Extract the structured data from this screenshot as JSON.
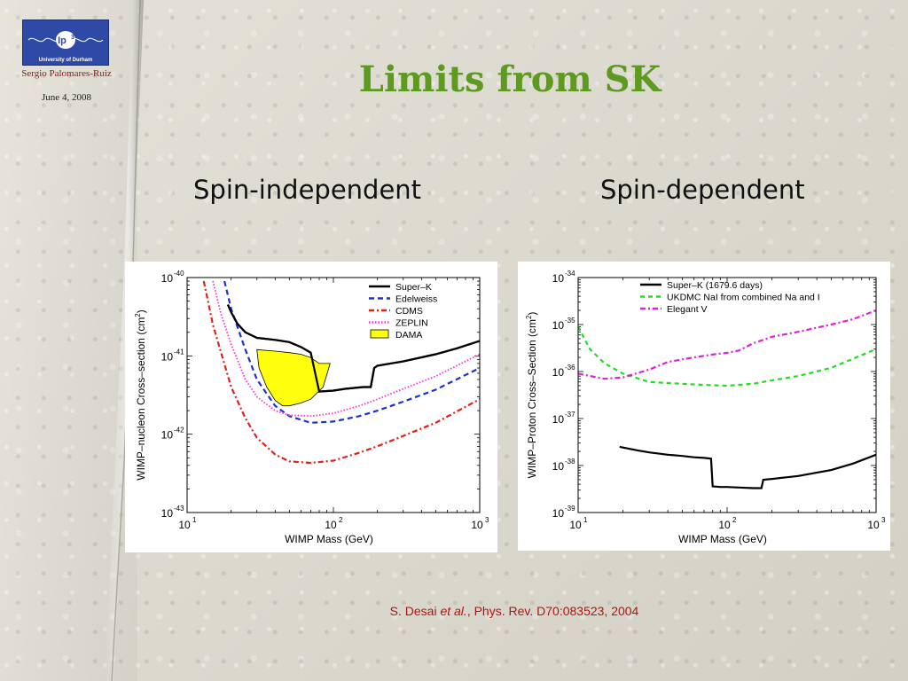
{
  "slide": {
    "author": "Sergio Palomares-Ruiz",
    "date": "June 4, 2008",
    "logo": {
      "mark": "Ip",
      "superscript": "3",
      "caption": "University of Durham"
    },
    "title": "Limits from SK",
    "left_heading": "Spin-independent",
    "right_heading": "Spin-dependent",
    "citation": {
      "prefix": "S. Desai ",
      "italic": "et al.",
      "suffix": ", Phys. Rev. D70:083523, 2004"
    }
  },
  "chart_data": [
    {
      "type": "line",
      "title": "",
      "xlabel": "WIMP Mass (GeV)",
      "ylabel": "WIMP–nucleon  Cross–section (cm",
      "ylabel_sup": "2",
      "ylabel_close": ")",
      "xscale": "log",
      "yscale": "log",
      "xlim": [
        10,
        1000
      ],
      "ylim": [
        1e-43,
        1e-40
      ],
      "xticks": [
        {
          "base": "10",
          "exp": "1",
          "v": 10
        },
        {
          "base": "10",
          "exp": "2",
          "v": 100
        },
        {
          "base": "10",
          "exp": "3",
          "v": 1000
        }
      ],
      "yticks": [
        {
          "base": "10",
          "exp": "-43",
          "v": 1e-43
        },
        {
          "base": "10",
          "exp": "-42",
          "v": 1e-42
        },
        {
          "base": "10",
          "exp": "-41",
          "v": 1e-41
        },
        {
          "base": "10",
          "exp": "-40",
          "v": 1e-40
        }
      ],
      "legend_position": "top-right",
      "series": [
        {
          "name": "Super–K",
          "color": "#000000",
          "dash": "",
          "width": 2.2,
          "x": [
            19,
            20,
            22,
            25,
            30,
            40,
            50,
            60,
            70,
            80,
            100,
            120,
            160,
            180,
            190,
            200,
            300,
            500,
            700,
            1000
          ],
          "y": [
            4.5e-41,
            3.6e-41,
            2.6e-41,
            2e-41,
            1.7e-41,
            1.6e-41,
            1.5e-41,
            1.3e-41,
            1.1e-41,
            3.5e-42,
            3.6e-42,
            3.8e-42,
            4e-42,
            4e-42,
            7e-42,
            7.5e-42,
            8.5e-42,
            1.05e-41,
            1.25e-41,
            1.55e-41
          ]
        },
        {
          "name": "Edelweiss",
          "color": "#1f2fd0",
          "dash": "6,4",
          "width": 2.2,
          "x": [
            18,
            20,
            25,
            30,
            40,
            50,
            70,
            100,
            150,
            200,
            300,
            500,
            1000
          ],
          "y": [
            9e-41,
            4e-41,
            1.2e-41,
            5e-42,
            2.3e-42,
            1.7e-42,
            1.4e-42,
            1.45e-42,
            1.7e-42,
            2e-42,
            2.6e-42,
            3.7e-42,
            7e-42
          ]
        },
        {
          "name": "CDMS",
          "color": "#e0201a",
          "dash": "6,3,2,3",
          "width": 2.2,
          "x": [
            13,
            15,
            20,
            25,
            30,
            40,
            50,
            70,
            100,
            150,
            200,
            300,
            500,
            1000
          ],
          "y": [
            9e-41,
            2.5e-41,
            4e-42,
            1.6e-42,
            9e-43,
            5.5e-43,
            4.5e-43,
            4.3e-43,
            4.6e-43,
            5.8e-43,
            7e-43,
            9.5e-43,
            1.4e-42,
            2.8e-42
          ]
        },
        {
          "name": "ZEPLIN",
          "color": "#ff2fd8",
          "dash": "1.5,2",
          "width": 1.8,
          "x": [
            15,
            17,
            20,
            25,
            30,
            40,
            50,
            70,
            100,
            150,
            200,
            300,
            500,
            1000
          ],
          "y": [
            9e-41,
            3.5e-41,
            1.4e-41,
            5e-42,
            3e-42,
            2e-42,
            1.75e-42,
            1.7e-42,
            1.85e-42,
            2.3e-42,
            2.8e-42,
            3.8e-42,
            5.5e-42,
            1.05e-41
          ]
        }
      ],
      "regions": [
        {
          "name": "DAMA",
          "fill": "#ffff00",
          "stroke": "#000000",
          "x": [
            30,
            40,
            50,
            60,
            70,
            80,
            95,
            85,
            70,
            60,
            50,
            45,
            40,
            35,
            31
          ],
          "y": [
            1.2e-41,
            1.15e-41,
            1.1e-41,
            1.05e-41,
            9.5e-42,
            8e-42,
            8e-42,
            4e-42,
            2.8e-42,
            2.5e-42,
            2.3e-42,
            2.3e-42,
            2.7e-42,
            4e-42,
            7e-42
          ]
        }
      ]
    },
    {
      "type": "line",
      "title": "",
      "xlabel": "WIMP Mass (GeV)",
      "ylabel": "WIMP–Proton Cross–Section (cm",
      "ylabel_sup": "2",
      "ylabel_close": ")",
      "xscale": "log",
      "yscale": "log",
      "xlim": [
        10,
        1000
      ],
      "ylim": [
        1e-39,
        1e-34
      ],
      "xticks": [
        {
          "base": "10",
          "exp": "1",
          "v": 10
        },
        {
          "base": "10",
          "exp": "2",
          "v": 100
        },
        {
          "base": "10",
          "exp": "3",
          "v": 1000
        }
      ],
      "yticks": [
        {
          "base": "10",
          "exp": "-39",
          "v": 1e-39
        },
        {
          "base": "10",
          "exp": "-38",
          "v": 1e-38
        },
        {
          "base": "10",
          "exp": "-37",
          "v": 1e-37
        },
        {
          "base": "10",
          "exp": "-36",
          "v": 1e-36
        },
        {
          "base": "10",
          "exp": "-35",
          "v": 1e-35
        },
        {
          "base": "10",
          "exp": "-34",
          "v": 1e-34
        }
      ],
      "legend_position": "top-right",
      "series": [
        {
          "name": "Super–K (1679.6 days)",
          "color": "#000000",
          "dash": "",
          "width": 2.2,
          "x": [
            19,
            25,
            30,
            40,
            50,
            60,
            70,
            78,
            80,
            90,
            100,
            120,
            150,
            170,
            175,
            200,
            300,
            500,
            700,
            1000
          ],
          "y": [
            2.5e-38,
            2.1e-38,
            1.9e-38,
            1.7e-38,
            1.6e-38,
            1.5e-38,
            1.45e-38,
            1.4e-38,
            3.6e-39,
            3.5e-39,
            3.5e-39,
            3.4e-39,
            3.3e-39,
            3.3e-39,
            5e-39,
            5.2e-39,
            6e-39,
            8e-39,
            1.1e-38,
            1.7e-38
          ]
        },
        {
          "name": "UKDMC NaI from combined Na and I",
          "color": "#22dd22",
          "dash": "5,4",
          "width": 2.2,
          "x": [
            10,
            12,
            15,
            20,
            30,
            50,
            70,
            100,
            150,
            200,
            300,
            500,
            1000
          ],
          "y": [
            9e-36,
            3e-36,
            1.5e-36,
            9e-37,
            6e-37,
            5.5e-37,
            5.2e-37,
            5e-37,
            5.5e-37,
            6.5e-37,
            8e-37,
            1.2e-36,
            3e-36
          ]
        },
        {
          "name": "Elegant V",
          "color": "#e020d8",
          "dash": "6,3,2,3",
          "width": 2.2,
          "x": [
            10,
            15,
            20,
            30,
            40,
            60,
            80,
            100,
            120,
            150,
            200,
            300,
            500,
            700,
            1000
          ],
          "y": [
            9e-37,
            7e-37,
            7.5e-37,
            1.1e-36,
            1.6e-36,
            2e-36,
            2.3e-36,
            2.5e-36,
            2.8e-36,
            4e-36,
            5.5e-36,
            7e-36,
            1e-35,
            1.3e-35,
            2e-35
          ]
        }
      ],
      "regions": []
    }
  ]
}
